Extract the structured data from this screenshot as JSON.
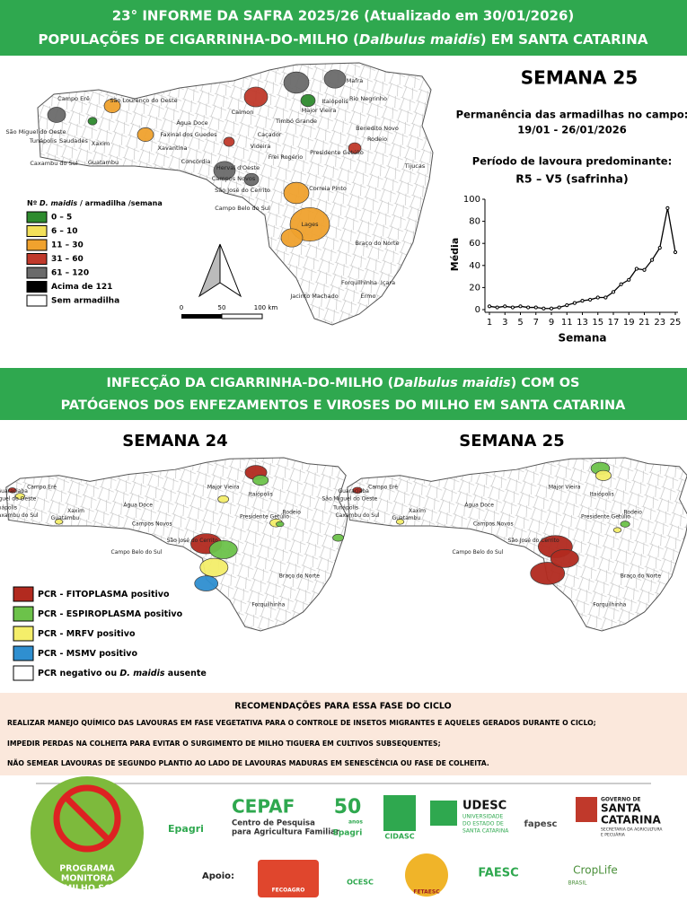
{
  "header": {
    "line1": "23° INFORME DA SAFRA 2025/26 (Atualizado em 30/01/2026)",
    "line2": [
      "POPULAÇÕES DE CIGARRINHA-DO-MILHO (",
      "Dalbulus maidis",
      ") EM SANTA CATARINA"
    ]
  },
  "map_legend": {
    "title": [
      "Nº ",
      "D. maidis",
      " / armadilha /semana"
    ],
    "items": [
      {
        "label": "0 – 5",
        "color": "#2e8b2e"
      },
      {
        "label": "6 – 10",
        "color": "#f2e05a"
      },
      {
        "label": "11 – 30",
        "color": "#f0a22e"
      },
      {
        "label": "31 – 60",
        "color": "#c0392b"
      },
      {
        "label": "61 – 120",
        "color": "#6b6b6b"
      },
      {
        "label": "Acima de 121",
        "color": "#000000"
      },
      {
        "label": "Sem armadilha",
        "color": "#ffffff"
      }
    ]
  },
  "scale_bar": [
    "0",
    "50",
    "100 km"
  ],
  "map_labels": [
    "Campo Erê",
    "São Lourenço do Oeste",
    "São Miguel do Oeste",
    "Tunápolis",
    "Saudades",
    "Xaxim",
    "Caxambu do Sul",
    "Guatambu",
    "Água Doce",
    "Faxinal dos Guedes",
    "Xavantina",
    "Concórdia",
    "Calmon",
    "Caçador",
    "Videira",
    "Itaiópolis",
    "Major Vieira",
    "Timbó Grande",
    "Mafra",
    "Rio Negrinho",
    "Benedito Novo",
    "Rodeio",
    "Frei Rogério",
    "Presidente Getúlio",
    "Tijucas",
    "Herval d'Oeste",
    "Campos Novos",
    "São José do Cerrito",
    "Correia Pinto",
    "Campo Belo do Sul",
    "Lages",
    "Braço do Norte",
    "Forquilhinha",
    "Içara",
    "Jacinto Machado",
    "Ermo"
  ],
  "side_panel": {
    "week": "SEMANA 25",
    "permanence_label": "Permanência das armadilhas no campo:",
    "permanence_dates": "19/01 - 26/01/2026",
    "stage_label": "Período de lavoura predominante:",
    "stage": "R5 – V5 (safrinha)"
  },
  "chart_data": {
    "type": "line",
    "x_label": "Semana",
    "y_label": "Média",
    "x": [
      1,
      2,
      3,
      4,
      5,
      6,
      7,
      8,
      9,
      10,
      11,
      12,
      13,
      14,
      15,
      16,
      17,
      18,
      19,
      20,
      21,
      22,
      23,
      24,
      25
    ],
    "values": [
      3,
      2,
      3,
      2,
      3,
      2,
      2,
      1,
      1,
      2,
      4,
      6,
      8,
      9,
      11,
      11,
      16,
      23,
      27,
      37,
      36,
      45,
      56,
      92,
      52
    ],
    "color": "#000000",
    "xlim": [
      1,
      25
    ],
    "xticks": [
      1,
      3,
      5,
      7,
      9,
      11,
      13,
      15,
      17,
      19,
      21,
      23,
      25
    ],
    "ylim": [
      0,
      100
    ],
    "yticks": [
      0,
      20,
      40,
      60,
      80,
      100
    ],
    "grid": false
  },
  "section2": {
    "line1": [
      "INFECÇÃO DA CIGARRINHA-DO-MILHO (",
      "Dalbulus maidis",
      ") COM OS"
    ],
    "line2": "PATÓGENOS DOS ENFEZAMENTOS E VIROSES DO MILHO EM SANTA CATARINA"
  },
  "infection_maps": [
    {
      "title": "SEMANA 24",
      "labels": [
        "Guaraciaba",
        "Campo Erê",
        "São Miguel do Oeste",
        "Tunápolis",
        "Caxambu do Sul",
        "Guatambu",
        "Xaxim",
        "Água Doce",
        "Major Vieira",
        "Itaiópolis",
        "Rodeio",
        "Presidente Getúlio",
        "Campos Novos",
        "São José do Cerrito",
        "Campo Belo do Sul",
        "Braço do Norte",
        "Forquilhinha"
      ]
    },
    {
      "title": "SEMANA 25",
      "labels": [
        "Guaraciaba",
        "Campo Erê",
        "São Miguel do Oeste",
        "Tunápolis",
        "Caxambu do Sul",
        "Guatambu",
        "Xaxim",
        "Água Doce",
        "Major Vieira",
        "Itaiópolis",
        "Rodeio",
        "Presidente Getúlio",
        "Campos Novos",
        "São José do Cerrito",
        "Campo Belo do Sul",
        "Braço do Norte",
        "Forquilhinha"
      ]
    }
  ],
  "pcr_legend": [
    {
      "label": [
        "PCR - FITOPLASMA positivo"
      ],
      "color": "#b22a1f"
    },
    {
      "label": [
        "PCR - ESPIROPLASMA positivo"
      ],
      "color": "#6cc24a"
    },
    {
      "label": [
        "PCR - MRFV positivo"
      ],
      "color": "#f4ee6a"
    },
    {
      "label": [
        "PCR - MSMV positivo"
      ],
      "color": "#2f8fd0"
    },
    {
      "label": [
        "PCR negativo ou ",
        "D. maidis",
        " ausente"
      ],
      "color": "#ffffff"
    }
  ],
  "recommendations": {
    "title": "RECOMENDAÇÕES PARA ESSA FASE DO CICLO",
    "items": [
      "REALIZAR MANEJO QUÍMICO DAS LAVOURAS EM FASE VEGETATIVA PARA O CONTROLE DE INSETOS MIGRANTES E AQUELES GERADOS DURANTE O CICLO;",
      "IMPEDIR PERDAS NA COLHEITA PARA EVITAR O SURGIMENTO DE MILHO TIGUERA EM CULTIVOS SUBSEQUENTES;",
      "NÃO SEMEAR LAVOURAS DE SEGUNDO PLANTIO AO LADO DE LAVOURAS MADURAS EM SENESCÊNCIA OU FASE DE COLHEITA."
    ]
  },
  "footer": {
    "program": [
      "PROGRAMA",
      "MONITORA",
      "MILHO SC"
    ],
    "logos": [
      "Epagri",
      "CEPAF",
      "Centro de Pesquisa",
      "para Agricultura Familiar",
      "50",
      "anos",
      "Epagri",
      "CIDASC",
      "UDESC",
      "UNIVERSIDADE",
      "DO ESTADO DE",
      "SANTA CATARINA",
      "fapesc",
      "GOVERNO DE",
      "SANTA",
      "CATARINA",
      "SECRETARIA DA AGRICULTURA",
      "E PECUÁRIA",
      "Apoio:",
      "FECOAGRO",
      "OCESC",
      "FETAESC",
      "FAESC",
      "CropLife",
      "BRASIL"
    ]
  }
}
